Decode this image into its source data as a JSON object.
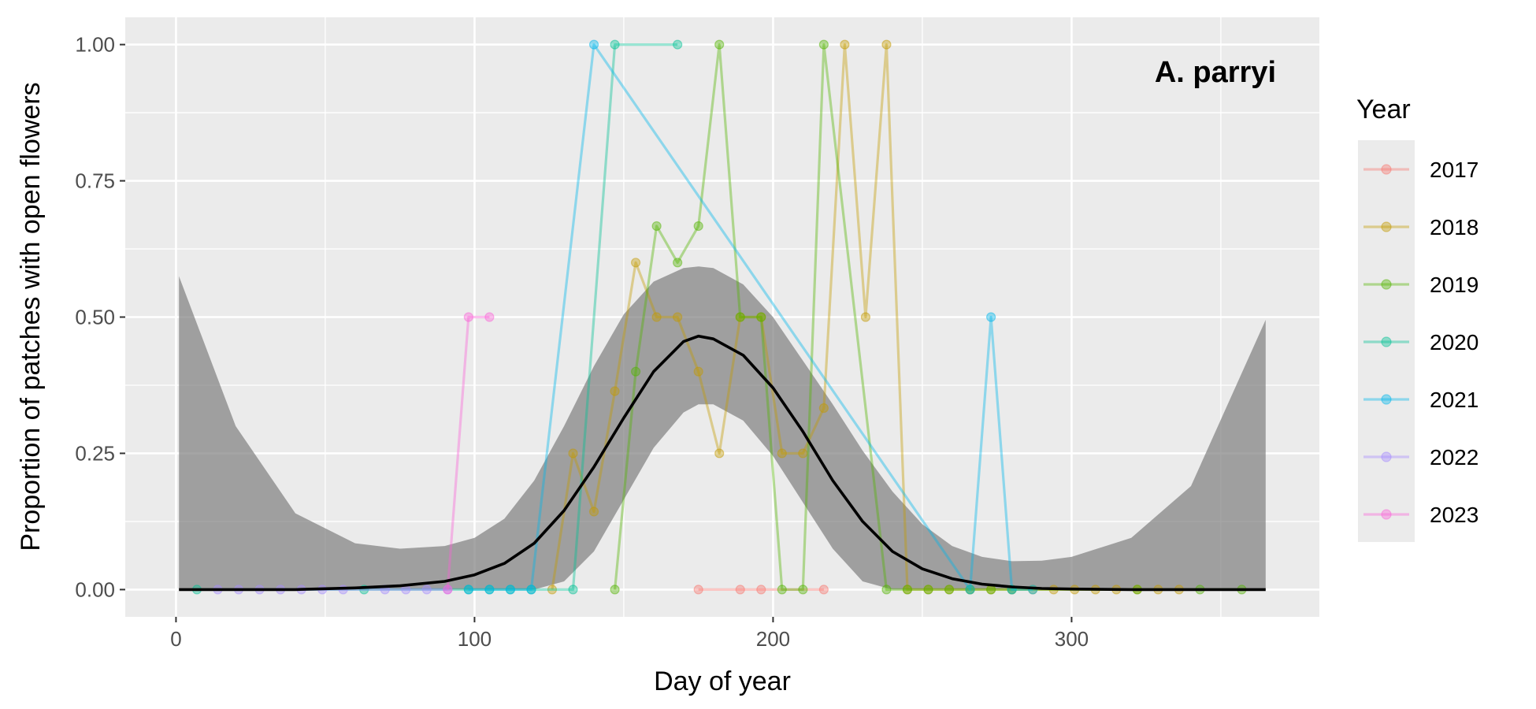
{
  "chart_data": {
    "type": "line",
    "annotation": "A. parryi",
    "xlabel": "Day of year",
    "ylabel": "Proportion of patches with open flowers",
    "xlim": [
      -17,
      383
    ],
    "ylim": [
      -0.05,
      1.05
    ],
    "xticks": [
      0,
      100,
      200,
      300
    ],
    "yticks": [
      0,
      0.25,
      0.5,
      0.75,
      1.0
    ],
    "ytick_labels": [
      "0.00",
      "0.25",
      "0.50",
      "0.75",
      "1.00"
    ],
    "grid": true,
    "legend": {
      "title": "Year",
      "position": "right"
    },
    "series": [
      {
        "name": "2017",
        "color": "#F8766D",
        "x": [
          175,
          189,
          196,
          217
        ],
        "y": [
          0,
          0,
          0,
          0
        ]
      },
      {
        "name": "2018",
        "color": "#C49A00",
        "x": [
          126,
          133,
          140,
          147,
          154,
          161,
          168,
          175,
          182,
          189,
          196,
          203,
          210,
          217,
          224,
          231,
          238,
          245,
          252,
          259,
          266,
          273,
          280,
          287,
          294,
          301,
          308,
          315,
          322,
          329,
          336
        ],
        "y": [
          0,
          0.25,
          0.143,
          0.364,
          0.6,
          0.5,
          0.5,
          0.4,
          0.25,
          0.5,
          0.5,
          0.25,
          0.25,
          0.333,
          1.0,
          0.5,
          1.0,
          0,
          0,
          0,
          0,
          0,
          0,
          0,
          0,
          0,
          0,
          0,
          0,
          0,
          0
        ]
      },
      {
        "name": "2019",
        "color": "#53B400",
        "x": [
          147,
          154,
          161,
          168,
          175,
          182,
          189,
          196,
          203,
          210,
          217,
          238,
          245,
          252,
          259,
          266,
          273,
          280,
          322,
          343,
          357
        ],
        "y": [
          0,
          0.4,
          0.667,
          0.6,
          0.667,
          1.0,
          0.5,
          0.5,
          0,
          0,
          1.0,
          0,
          0,
          0,
          0,
          0,
          0,
          0,
          0,
          0,
          0
        ]
      },
      {
        "name": "2020",
        "color": "#00C094",
        "x": [
          7,
          63,
          98,
          105,
          112,
          119,
          133,
          147,
          168
        ],
        "y": [
          0,
          0,
          0,
          0,
          0,
          0,
          0,
          1.0,
          1.0
        ]
      },
      {
        "name": "2021",
        "color": "#00B6EB",
        "x": [
          98,
          105,
          112,
          119,
          140,
          266,
          273,
          280,
          287
        ],
        "y": [
          0,
          0,
          0,
          0,
          1.0,
          0,
          0.5,
          0,
          0
        ]
      },
      {
        "name": "2022",
        "color": "#A58AFF",
        "x": [
          14,
          21,
          28,
          35,
          42,
          49,
          56,
          70,
          77,
          84,
          91
        ],
        "y": [
          0,
          0,
          0,
          0,
          0,
          0,
          0,
          0,
          0,
          0,
          0
        ]
      },
      {
        "name": "2023",
        "color": "#FB61D7",
        "x": [
          91,
          98,
          105
        ],
        "y": [
          0,
          0.5,
          0.5
        ]
      }
    ],
    "fit": {
      "name": "fit",
      "color": "#000000",
      "band_color": "#7f7f7f",
      "x": [
        1,
        20,
        40,
        60,
        75,
        90,
        100,
        110,
        120,
        130,
        140,
        150,
        160,
        170,
        175,
        180,
        190,
        200,
        210,
        220,
        230,
        240,
        250,
        260,
        270,
        280,
        290,
        300,
        320,
        340,
        365
      ],
      "y": [
        0.0,
        0.0,
        0.0,
        0.003,
        0.007,
        0.015,
        0.027,
        0.048,
        0.085,
        0.145,
        0.225,
        0.315,
        0.4,
        0.455,
        0.465,
        0.46,
        0.43,
        0.37,
        0.29,
        0.2,
        0.125,
        0.07,
        0.038,
        0.02,
        0.01,
        0.005,
        0.002,
        0.001,
        0.0,
        0.0,
        0.0
      ],
      "ymin": [
        0.0,
        0.0,
        0.0,
        0.0,
        0.0,
        0.0,
        0.0,
        0.0,
        0.0,
        0.015,
        0.07,
        0.165,
        0.26,
        0.325,
        0.34,
        0.34,
        0.31,
        0.245,
        0.16,
        0.075,
        0.015,
        0.0,
        0.0,
        0.0,
        0.0,
        0.0,
        0.0,
        0.0,
        0.0,
        0.0,
        0.0
      ],
      "ymax": [
        0.575,
        0.3,
        0.14,
        0.085,
        0.075,
        0.08,
        0.095,
        0.13,
        0.2,
        0.3,
        0.41,
        0.505,
        0.565,
        0.59,
        0.593,
        0.59,
        0.56,
        0.5,
        0.42,
        0.34,
        0.255,
        0.18,
        0.12,
        0.08,
        0.06,
        0.052,
        0.053,
        0.06,
        0.095,
        0.19,
        0.495
      ]
    }
  }
}
